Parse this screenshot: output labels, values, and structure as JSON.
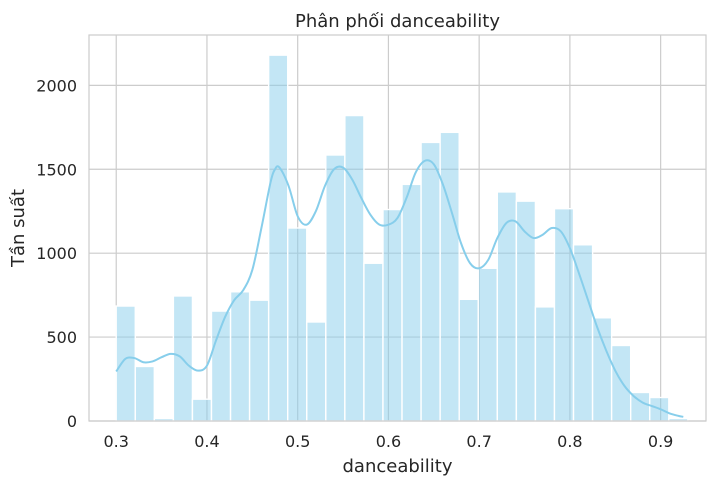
{
  "chart_data": {
    "type": "bar",
    "title": "Phân phối danceability",
    "xlabel": "danceability",
    "ylabel": "Tần suất",
    "xlim": [
      0.27,
      0.95
    ],
    "ylim": [
      0,
      2300
    ],
    "xticks": [
      0.3,
      0.4,
      0.5,
      0.6,
      0.7,
      0.8,
      0.9
    ],
    "xtick_labels": [
      "0.3",
      "0.4",
      "0.5",
      "0.6",
      "0.7",
      "0.8",
      "0.9"
    ],
    "yticks": [
      0,
      500,
      1000,
      1500,
      2000
    ],
    "ytick_labels": [
      "0",
      "500",
      "1000",
      "1500",
      "2000"
    ],
    "grid": true,
    "bar_color": "#87CEEB",
    "kde_color": "#87CEEB",
    "grid_color": "#cccccc",
    "bins": [
      {
        "x0": 0.3,
        "x1": 0.321,
        "count": 685
      },
      {
        "x0": 0.321,
        "x1": 0.342,
        "count": 325
      },
      {
        "x0": 0.342,
        "x1": 0.363,
        "count": 15
      },
      {
        "x0": 0.363,
        "x1": 0.384,
        "count": 745
      },
      {
        "x0": 0.384,
        "x1": 0.405,
        "count": 130
      },
      {
        "x0": 0.405,
        "x1": 0.426,
        "count": 655
      },
      {
        "x0": 0.426,
        "x1": 0.447,
        "count": 770
      },
      {
        "x0": 0.447,
        "x1": 0.468,
        "count": 720
      },
      {
        "x0": 0.468,
        "x1": 0.489,
        "count": 2180
      },
      {
        "x0": 0.489,
        "x1": 0.51,
        "count": 1150
      },
      {
        "x0": 0.51,
        "x1": 0.531,
        "count": 590
      },
      {
        "x0": 0.531,
        "x1": 0.552,
        "count": 1585
      },
      {
        "x0": 0.552,
        "x1": 0.573,
        "count": 1820
      },
      {
        "x0": 0.573,
        "x1": 0.594,
        "count": 940
      },
      {
        "x0": 0.594,
        "x1": 0.615,
        "count": 1260
      },
      {
        "x0": 0.615,
        "x1": 0.636,
        "count": 1410
      },
      {
        "x0": 0.636,
        "x1": 0.657,
        "count": 1660
      },
      {
        "x0": 0.657,
        "x1": 0.678,
        "count": 1720
      },
      {
        "x0": 0.678,
        "x1": 0.699,
        "count": 725
      },
      {
        "x0": 0.699,
        "x1": 0.72,
        "count": 910
      },
      {
        "x0": 0.72,
        "x1": 0.741,
        "count": 1365
      },
      {
        "x0": 0.741,
        "x1": 0.762,
        "count": 1310
      },
      {
        "x0": 0.762,
        "x1": 0.783,
        "count": 680
      },
      {
        "x0": 0.783,
        "x1": 0.804,
        "count": 1265
      },
      {
        "x0": 0.804,
        "x1": 0.825,
        "count": 1050
      },
      {
        "x0": 0.825,
        "x1": 0.846,
        "count": 615
      },
      {
        "x0": 0.846,
        "x1": 0.867,
        "count": 450
      },
      {
        "x0": 0.867,
        "x1": 0.888,
        "count": 170
      },
      {
        "x0": 0.888,
        "x1": 0.909,
        "count": 140
      },
      {
        "x0": 0.909,
        "x1": 0.93,
        "count": 15
      }
    ],
    "kde": {
      "x": [
        0.3,
        0.31,
        0.32,
        0.33,
        0.34,
        0.35,
        0.36,
        0.37,
        0.38,
        0.39,
        0.4,
        0.41,
        0.42,
        0.43,
        0.44,
        0.45,
        0.46,
        0.47,
        0.475,
        0.48,
        0.49,
        0.5,
        0.51,
        0.52,
        0.53,
        0.54,
        0.55,
        0.56,
        0.57,
        0.58,
        0.59,
        0.6,
        0.61,
        0.62,
        0.63,
        0.64,
        0.65,
        0.66,
        0.67,
        0.68,
        0.69,
        0.7,
        0.71,
        0.72,
        0.73,
        0.74,
        0.75,
        0.76,
        0.77,
        0.78,
        0.79,
        0.8,
        0.81,
        0.82,
        0.83,
        0.84,
        0.85,
        0.86,
        0.87,
        0.88,
        0.89,
        0.9,
        0.91,
        0.92,
        0.925
      ],
      "y": [
        295,
        370,
        375,
        350,
        355,
        380,
        400,
        385,
        330,
        300,
        330,
        480,
        620,
        720,
        780,
        900,
        1150,
        1420,
        1500,
        1510,
        1400,
        1220,
        1170,
        1250,
        1400,
        1500,
        1510,
        1440,
        1330,
        1230,
        1170,
        1170,
        1210,
        1330,
        1480,
        1550,
        1530,
        1410,
        1240,
        1060,
        940,
        910,
        960,
        1090,
        1180,
        1190,
        1130,
        1090,
        1110,
        1150,
        1130,
        1030,
        880,
        720,
        560,
        420,
        300,
        210,
        150,
        110,
        90,
        70,
        45,
        30,
        25
      ]
    }
  }
}
